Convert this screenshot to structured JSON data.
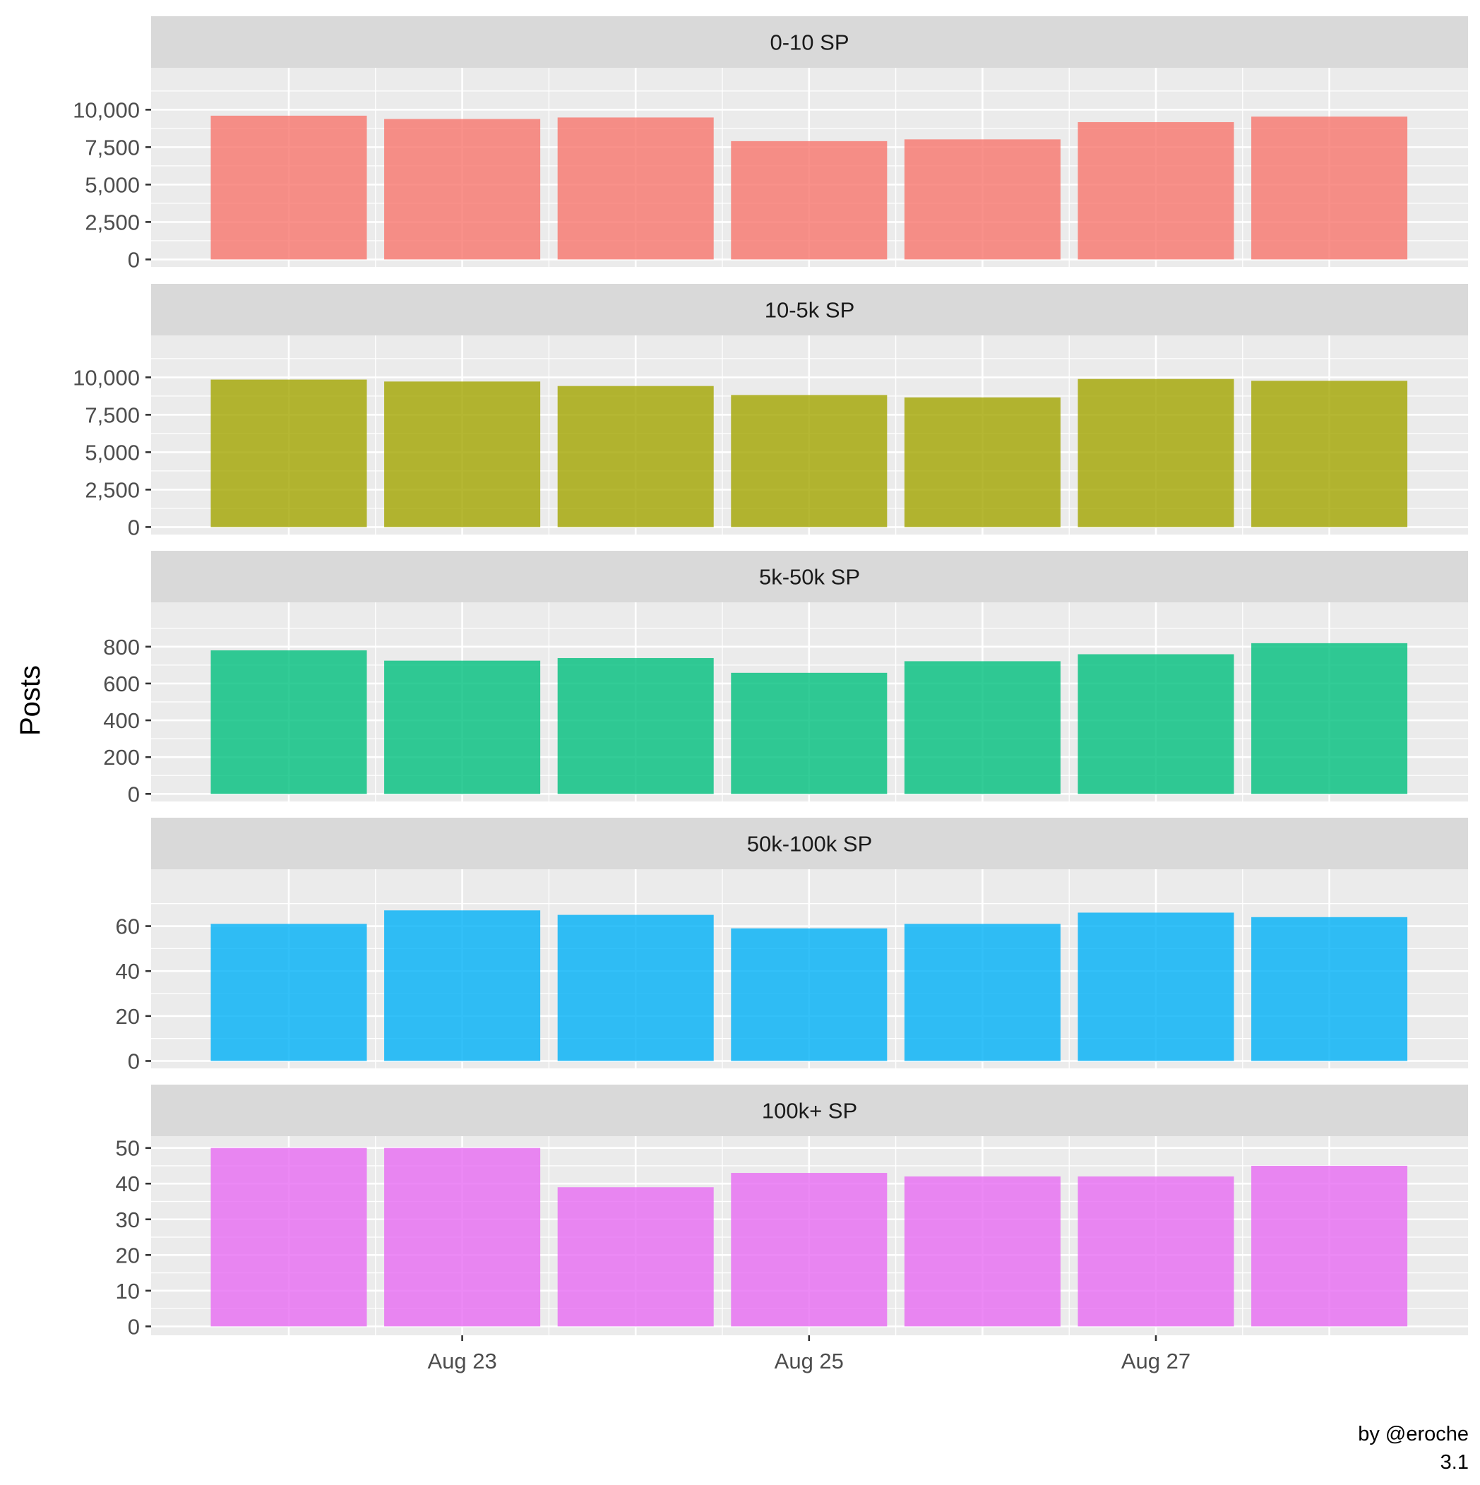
{
  "chart_data": {
    "type": "bar",
    "title": "",
    "xlabel": "",
    "ylabel": "Posts",
    "caption": [
      "by @eroche",
      "3.1"
    ],
    "x": [
      "Aug 22",
      "Aug 23",
      "Aug 24",
      "Aug 25",
      "Aug 26",
      "Aug 27",
      "Aug 28"
    ],
    "x_tick_labels": [
      "Aug 23",
      "Aug 25",
      "Aug 27"
    ],
    "grid": true,
    "legend": "none",
    "facets": [
      {
        "strip_label": "0-10    SP",
        "color": "#F8766D",
        "values": [
          9600,
          9380,
          9480,
          7900,
          8020,
          9170,
          9540
        ],
        "ylim": [
          -500,
          12800
        ],
        "y_ticks": [
          0,
          2500,
          5000,
          7500,
          10000
        ],
        "y_tick_labels": [
          "0",
          "2,500",
          "5,000",
          "7,500",
          "10,000"
        ]
      },
      {
        "strip_label": "10-5k   SP",
        "color": "#A3A500",
        "values": [
          9850,
          9720,
          9420,
          8820,
          8660,
          9890,
          9770
        ],
        "ylim": [
          -500,
          12800
        ],
        "y_ticks": [
          0,
          2500,
          5000,
          7500,
          10000
        ],
        "y_tick_labels": [
          "0",
          "2,500",
          "5,000",
          "7,500",
          "10,000"
        ]
      },
      {
        "strip_label": "5k-50k  SP",
        "color": "#00BF7D",
        "values": [
          780,
          724,
          738,
          658,
          721,
          759,
          819
        ],
        "ylim": [
          -41,
          1041
        ],
        "y_ticks": [
          0,
          200,
          400,
          600,
          800
        ],
        "y_tick_labels": [
          "0",
          "200",
          "400",
          "600",
          "800"
        ]
      },
      {
        "strip_label": "50k-100k SP",
        "color": "#00B0F6",
        "values": [
          61,
          67,
          65,
          59,
          61,
          66,
          64
        ],
        "ylim": [
          -3.3,
          85.3
        ],
        "y_ticks": [
          0,
          20,
          40,
          60
        ],
        "y_tick_labels": [
          "0",
          "20",
          "40",
          "60"
        ]
      },
      {
        "strip_label": "100k+ SP",
        "color": "#E76BF3",
        "values": [
          50,
          50,
          39,
          43,
          42,
          42,
          45
        ],
        "ylim": [
          -2.5,
          53.3
        ],
        "y_ticks": [
          0,
          10,
          20,
          30,
          40,
          50
        ],
        "y_tick_labels": [
          "0",
          "10",
          "20",
          "30",
          "40",
          "50"
        ]
      }
    ]
  }
}
